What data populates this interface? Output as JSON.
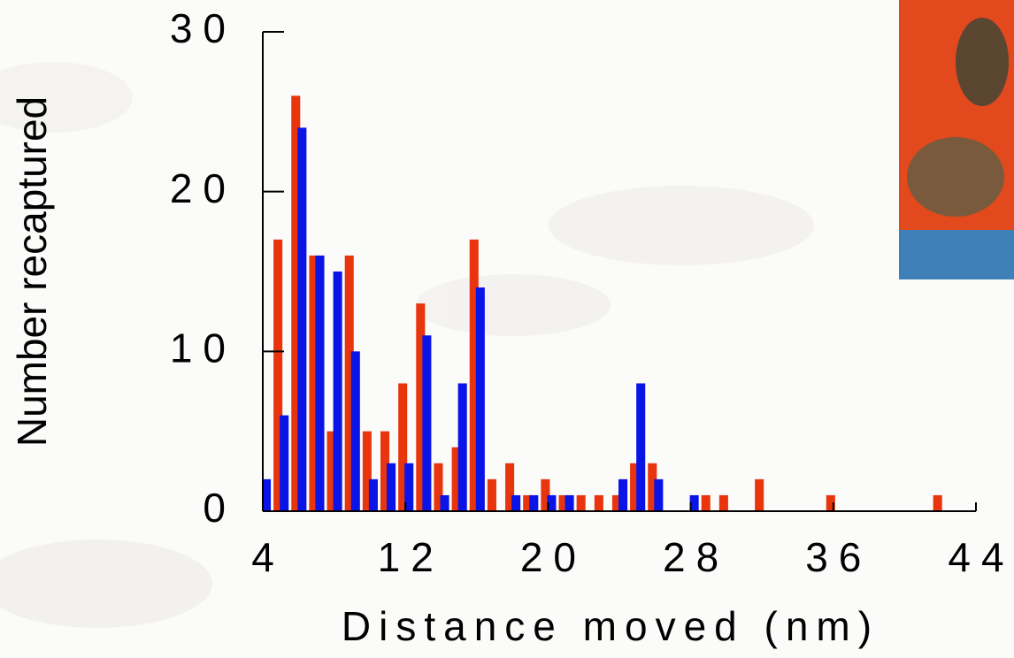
{
  "chart_data": {
    "type": "bar",
    "x_label": "Distance moved (nm)",
    "y_label": "Number recaptured",
    "x": [
      4,
      5,
      6,
      7,
      8,
      9,
      10,
      11,
      12,
      13,
      14,
      15,
      16,
      17,
      18,
      19,
      20,
      21,
      22,
      23,
      24,
      25,
      26,
      27,
      28,
      29,
      30,
      31,
      32,
      33,
      34,
      35,
      36,
      37,
      38,
      39,
      40,
      41,
      42
    ],
    "series": [
      {
        "name": "Red",
        "color": "#e8350e",
        "values": [
          0,
          17,
          26,
          16,
          5,
          16,
          5,
          5,
          8,
          13,
          3,
          4,
          17,
          2,
          3,
          1,
          2,
          1,
          1,
          1,
          1,
          3,
          3,
          0,
          0,
          1,
          1,
          0,
          2,
          0,
          0,
          0,
          1,
          0,
          0,
          0,
          0,
          0,
          1
        ]
      },
      {
        "name": "Blue",
        "color": "#0a14e6",
        "values": [
          2,
          6,
          24,
          16,
          15,
          10,
          2,
          3,
          3,
          11,
          1,
          8,
          14,
          0,
          1,
          1,
          1,
          1,
          0,
          0,
          2,
          8,
          2,
          0,
          1,
          0,
          0,
          0,
          0,
          0,
          0,
          0,
          0,
          0,
          0,
          0,
          0,
          0,
          0
        ]
      }
    ],
    "xlim": [
      4,
      44
    ],
    "xticks": [
      4,
      12,
      20,
      28,
      36,
      44
    ],
    "ylim": [
      0,
      30
    ],
    "yticks": [
      0,
      10,
      20,
      30
    ]
  }
}
